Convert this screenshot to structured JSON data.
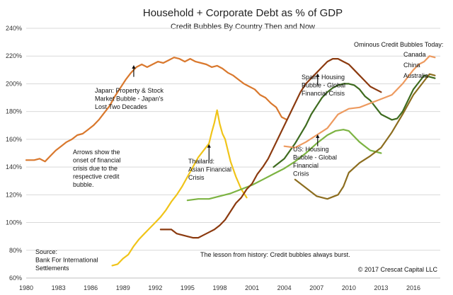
{
  "chart_data": {
    "type": "line",
    "title": "Household + Corporate Debt as % of GDP",
    "subtitle": "Credit Bubbles By Country Then and Now",
    "xlabel": "",
    "ylabel": "",
    "xlim": [
      1980,
      2018.5
    ],
    "ylim": [
      60,
      240
    ],
    "x_ticks": [
      1980,
      1983,
      1986,
      1989,
      1992,
      1995,
      1998,
      2001,
      2004,
      2007,
      2010,
      2013,
      2016
    ],
    "y_ticks": [
      60,
      80,
      100,
      120,
      140,
      160,
      180,
      200,
      220,
      240
    ],
    "y_tick_labels": [
      "60%",
      "80%",
      "100%",
      "120%",
      "140%",
      "160%",
      "180%",
      "200%",
      "220%",
      "240%"
    ],
    "grid": "horizontal",
    "series": [
      {
        "key": "japan",
        "color": "#d9782d",
        "points": [
          [
            1980,
            145
          ],
          [
            1980.75,
            145
          ],
          [
            1981.25,
            146
          ],
          [
            1981.75,
            144
          ],
          [
            1982.25,
            148
          ],
          [
            1982.75,
            152
          ],
          [
            1983.25,
            155
          ],
          [
            1983.75,
            158
          ],
          [
            1984.25,
            160
          ],
          [
            1984.75,
            163
          ],
          [
            1985.25,
            164
          ],
          [
            1985.75,
            167
          ],
          [
            1986.25,
            170
          ],
          [
            1986.75,
            174
          ],
          [
            1987.25,
            179
          ],
          [
            1987.75,
            184
          ],
          [
            1988.25,
            191
          ],
          [
            1988.75,
            197
          ],
          [
            1989.25,
            203
          ],
          [
            1989.75,
            208
          ],
          [
            1990.25,
            212
          ],
          [
            1990.75,
            214
          ],
          [
            1991.25,
            212
          ],
          [
            1991.75,
            214
          ],
          [
            1992.25,
            216
          ],
          [
            1992.75,
            215
          ],
          [
            1993.25,
            217
          ],
          [
            1993.75,
            219
          ],
          [
            1994.25,
            218
          ],
          [
            1994.75,
            216
          ],
          [
            1995.25,
            218
          ],
          [
            1995.75,
            216
          ],
          [
            1996.25,
            215
          ],
          [
            1996.75,
            214
          ],
          [
            1997.25,
            212
          ],
          [
            1997.75,
            213
          ],
          [
            1998.25,
            211
          ],
          [
            1998.75,
            208
          ],
          [
            1999.25,
            206
          ],
          [
            1999.75,
            203
          ],
          [
            2000.25,
            200
          ],
          [
            2000.75,
            198
          ],
          [
            2001.25,
            196
          ],
          [
            2001.75,
            192
          ],
          [
            2002.25,
            190
          ],
          [
            2002.75,
            186
          ],
          [
            2003.25,
            183
          ],
          [
            2003.75,
            176
          ],
          [
            2004.25,
            174
          ]
        ]
      },
      {
        "key": "thailand",
        "color": "#f0c419",
        "points": [
          [
            1988,
            69
          ],
          [
            1988.5,
            70
          ],
          [
            1989,
            74
          ],
          [
            1989.5,
            77
          ],
          [
            1990,
            83
          ],
          [
            1990.5,
            88
          ],
          [
            1991,
            92
          ],
          [
            1991.5,
            96
          ],
          [
            1992,
            100
          ],
          [
            1992.5,
            104
          ],
          [
            1993,
            109
          ],
          [
            1993.5,
            115
          ],
          [
            1994,
            120
          ],
          [
            1994.5,
            126
          ],
          [
            1995,
            133
          ],
          [
            1995.5,
            140
          ],
          [
            1996,
            147
          ],
          [
            1996.5,
            152
          ],
          [
            1997,
            157
          ],
          [
            1997.25,
            165
          ],
          [
            1997.5,
            172
          ],
          [
            1997.75,
            181
          ],
          [
            1998,
            171
          ],
          [
            1998.25,
            164
          ],
          [
            1998.5,
            160
          ],
          [
            1998.75,
            152
          ],
          [
            1999,
            144
          ],
          [
            1999.5,
            133
          ],
          [
            2000,
            124
          ],
          [
            2000.5,
            118
          ]
        ]
      },
      {
        "key": "us",
        "color": "#7cb342",
        "points": [
          [
            1995,
            116
          ],
          [
            1996,
            117
          ],
          [
            1997,
            117
          ],
          [
            1998,
            119
          ],
          [
            1999,
            121
          ],
          [
            2000,
            124
          ],
          [
            2001,
            127
          ],
          [
            2002,
            131
          ],
          [
            2003,
            135
          ],
          [
            2004,
            139
          ],
          [
            2005,
            144
          ],
          [
            2006,
            150
          ],
          [
            2007,
            157
          ],
          [
            2008,
            163
          ],
          [
            2008.75,
            166
          ],
          [
            2009.5,
            167
          ],
          [
            2010,
            166
          ],
          [
            2010.5,
            162
          ],
          [
            2011,
            158
          ],
          [
            2011.5,
            155
          ],
          [
            2012,
            152
          ],
          [
            2012.5,
            151
          ],
          [
            2013,
            150
          ]
        ]
      },
      {
        "key": "spain",
        "color": "#3e6b1f",
        "points": [
          [
            2003,
            140
          ],
          [
            2004,
            146
          ],
          [
            2005,
            157
          ],
          [
            2006,
            170
          ],
          [
            2006.5,
            178
          ],
          [
            2007,
            184
          ],
          [
            2007.5,
            190
          ],
          [
            2008,
            194
          ],
          [
            2008.5,
            197
          ],
          [
            2009,
            199
          ],
          [
            2009.5,
            200
          ],
          [
            2010,
            200
          ],
          [
            2010.5,
            199
          ],
          [
            2011,
            196
          ],
          [
            2011.5,
            191
          ],
          [
            2012,
            188
          ],
          [
            2012.5,
            183
          ],
          [
            2013,
            178
          ],
          [
            2013.5,
            176
          ],
          [
            2014,
            174
          ],
          [
            2014.5,
            175
          ],
          [
            2015,
            180
          ],
          [
            2015.5,
            188
          ],
          [
            2016,
            196
          ],
          [
            2016.5,
            201
          ],
          [
            2017,
            206
          ],
          [
            2017.5,
            205
          ],
          [
            2018,
            204
          ]
        ]
      },
      {
        "key": "china",
        "color": "#8c6d1f",
        "points": [
          [
            2005,
            131
          ],
          [
            2006,
            125
          ],
          [
            2007,
            119
          ],
          [
            2008,
            117
          ],
          [
            2009,
            120
          ],
          [
            2009.5,
            126
          ],
          [
            2010,
            136
          ],
          [
            2011,
            143
          ],
          [
            2012,
            148
          ],
          [
            2013,
            154
          ],
          [
            2014,
            165
          ],
          [
            2015,
            178
          ],
          [
            2016,
            192
          ],
          [
            2017,
            202
          ],
          [
            2017.5,
            207
          ],
          [
            2018,
            206
          ]
        ]
      },
      {
        "key": "canada",
        "color": "#ed9a5f",
        "points": [
          [
            2004,
            155
          ],
          [
            2005,
            154
          ],
          [
            2006,
            158
          ],
          [
            2007,
            163
          ],
          [
            2008,
            168
          ],
          [
            2009,
            178
          ],
          [
            2010,
            182
          ],
          [
            2011,
            183
          ],
          [
            2012,
            186
          ],
          [
            2013,
            189
          ],
          [
            2014,
            192
          ],
          [
            2015,
            200
          ],
          [
            2015.5,
            205
          ],
          [
            2016,
            210
          ],
          [
            2016.5,
            214
          ],
          [
            2017,
            216
          ],
          [
            2017.5,
            220
          ],
          [
            2018,
            219
          ]
        ]
      },
      {
        "key": "australia",
        "color": "#8b3a0f",
        "points": [
          [
            1992.5,
            95
          ],
          [
            1993,
            95
          ],
          [
            1993.5,
            95
          ],
          [
            1994,
            92
          ],
          [
            1994.5,
            91
          ],
          [
            1995,
            90
          ],
          [
            1995.5,
            89
          ],
          [
            1996,
            89
          ],
          [
            1996.5,
            91
          ],
          [
            1997,
            93
          ],
          [
            1997.5,
            95
          ],
          [
            1998,
            98
          ],
          [
            1998.5,
            102
          ],
          [
            1999,
            108
          ],
          [
            1999.5,
            114
          ],
          [
            2000,
            118
          ],
          [
            2000.5,
            124
          ],
          [
            2001,
            128
          ],
          [
            2001.5,
            135
          ],
          [
            2002,
            140
          ],
          [
            2002.5,
            146
          ],
          [
            2003,
            154
          ],
          [
            2003.5,
            162
          ],
          [
            2004,
            170
          ],
          [
            2004.5,
            178
          ],
          [
            2005,
            186
          ],
          [
            2005.5,
            194
          ],
          [
            2006,
            200
          ],
          [
            2006.5,
            204
          ],
          [
            2007,
            208
          ],
          [
            2007.5,
            212
          ],
          [
            2008,
            216
          ],
          [
            2008.5,
            218
          ],
          [
            2009,
            218
          ],
          [
            2009.5,
            216
          ],
          [
            2010,
            214
          ],
          [
            2010.5,
            210
          ],
          [
            2011,
            206
          ],
          [
            2011.5,
            202
          ],
          [
            2012,
            198
          ],
          [
            2012.5,
            196
          ],
          [
            2013,
            194
          ]
        ]
      }
    ],
    "annotations": [
      {
        "key": "ominous",
        "lines": [
          "Ominous Credit Bubbles Today:"
        ]
      },
      {
        "key": "legend_canada",
        "lines": [
          "Canada"
        ]
      },
      {
        "key": "legend_china",
        "lines": [
          "China"
        ]
      },
      {
        "key": "legend_australia",
        "lines": [
          "Australia"
        ]
      },
      {
        "key": "japan_note",
        "lines": [
          "Japan: Property & Stock",
          "Market Bubble - Japan's",
          "Lost Two Decades"
        ]
      },
      {
        "key": "spain_note",
        "lines": [
          "Spain: Housing",
          "Bubble - Global",
          "Financial Crisis"
        ]
      },
      {
        "key": "arrows_note",
        "lines": [
          "Arrows show the",
          "onset of financial",
          "crisis due to the",
          "respective credit",
          "bubble."
        ]
      },
      {
        "key": "thailand_note",
        "lines": [
          "Thailand:",
          "Asian Financial",
          "Crisis"
        ]
      },
      {
        "key": "us_note",
        "lines": [
          "US: Housing",
          "Bubble - Global",
          "Financial",
          "Crisis"
        ]
      },
      {
        "key": "source_note",
        "lines": [
          "Source:",
          "Bank For International",
          "Settlements"
        ]
      },
      {
        "key": "lesson_note",
        "lines": [
          "The lesson from history: Credit bubbles always burst."
        ]
      },
      {
        "key": "copyright_note",
        "lines": [
          "© 2017 Crescat Capital LLC"
        ]
      }
    ],
    "arrows": [
      {
        "key": "japan_arrow",
        "x": 1990,
        "y_from": 205,
        "y_to": 213
      },
      {
        "key": "thailand_arrow",
        "x": 1997,
        "y_from": 145,
        "y_to": 156
      },
      {
        "key": "spain_arrow",
        "x": 2007.1,
        "y_from": 199,
        "y_to": 207
      },
      {
        "key": "us_arrow",
        "x": 2007.1,
        "y_from": 155,
        "y_to": 163
      }
    ]
  }
}
